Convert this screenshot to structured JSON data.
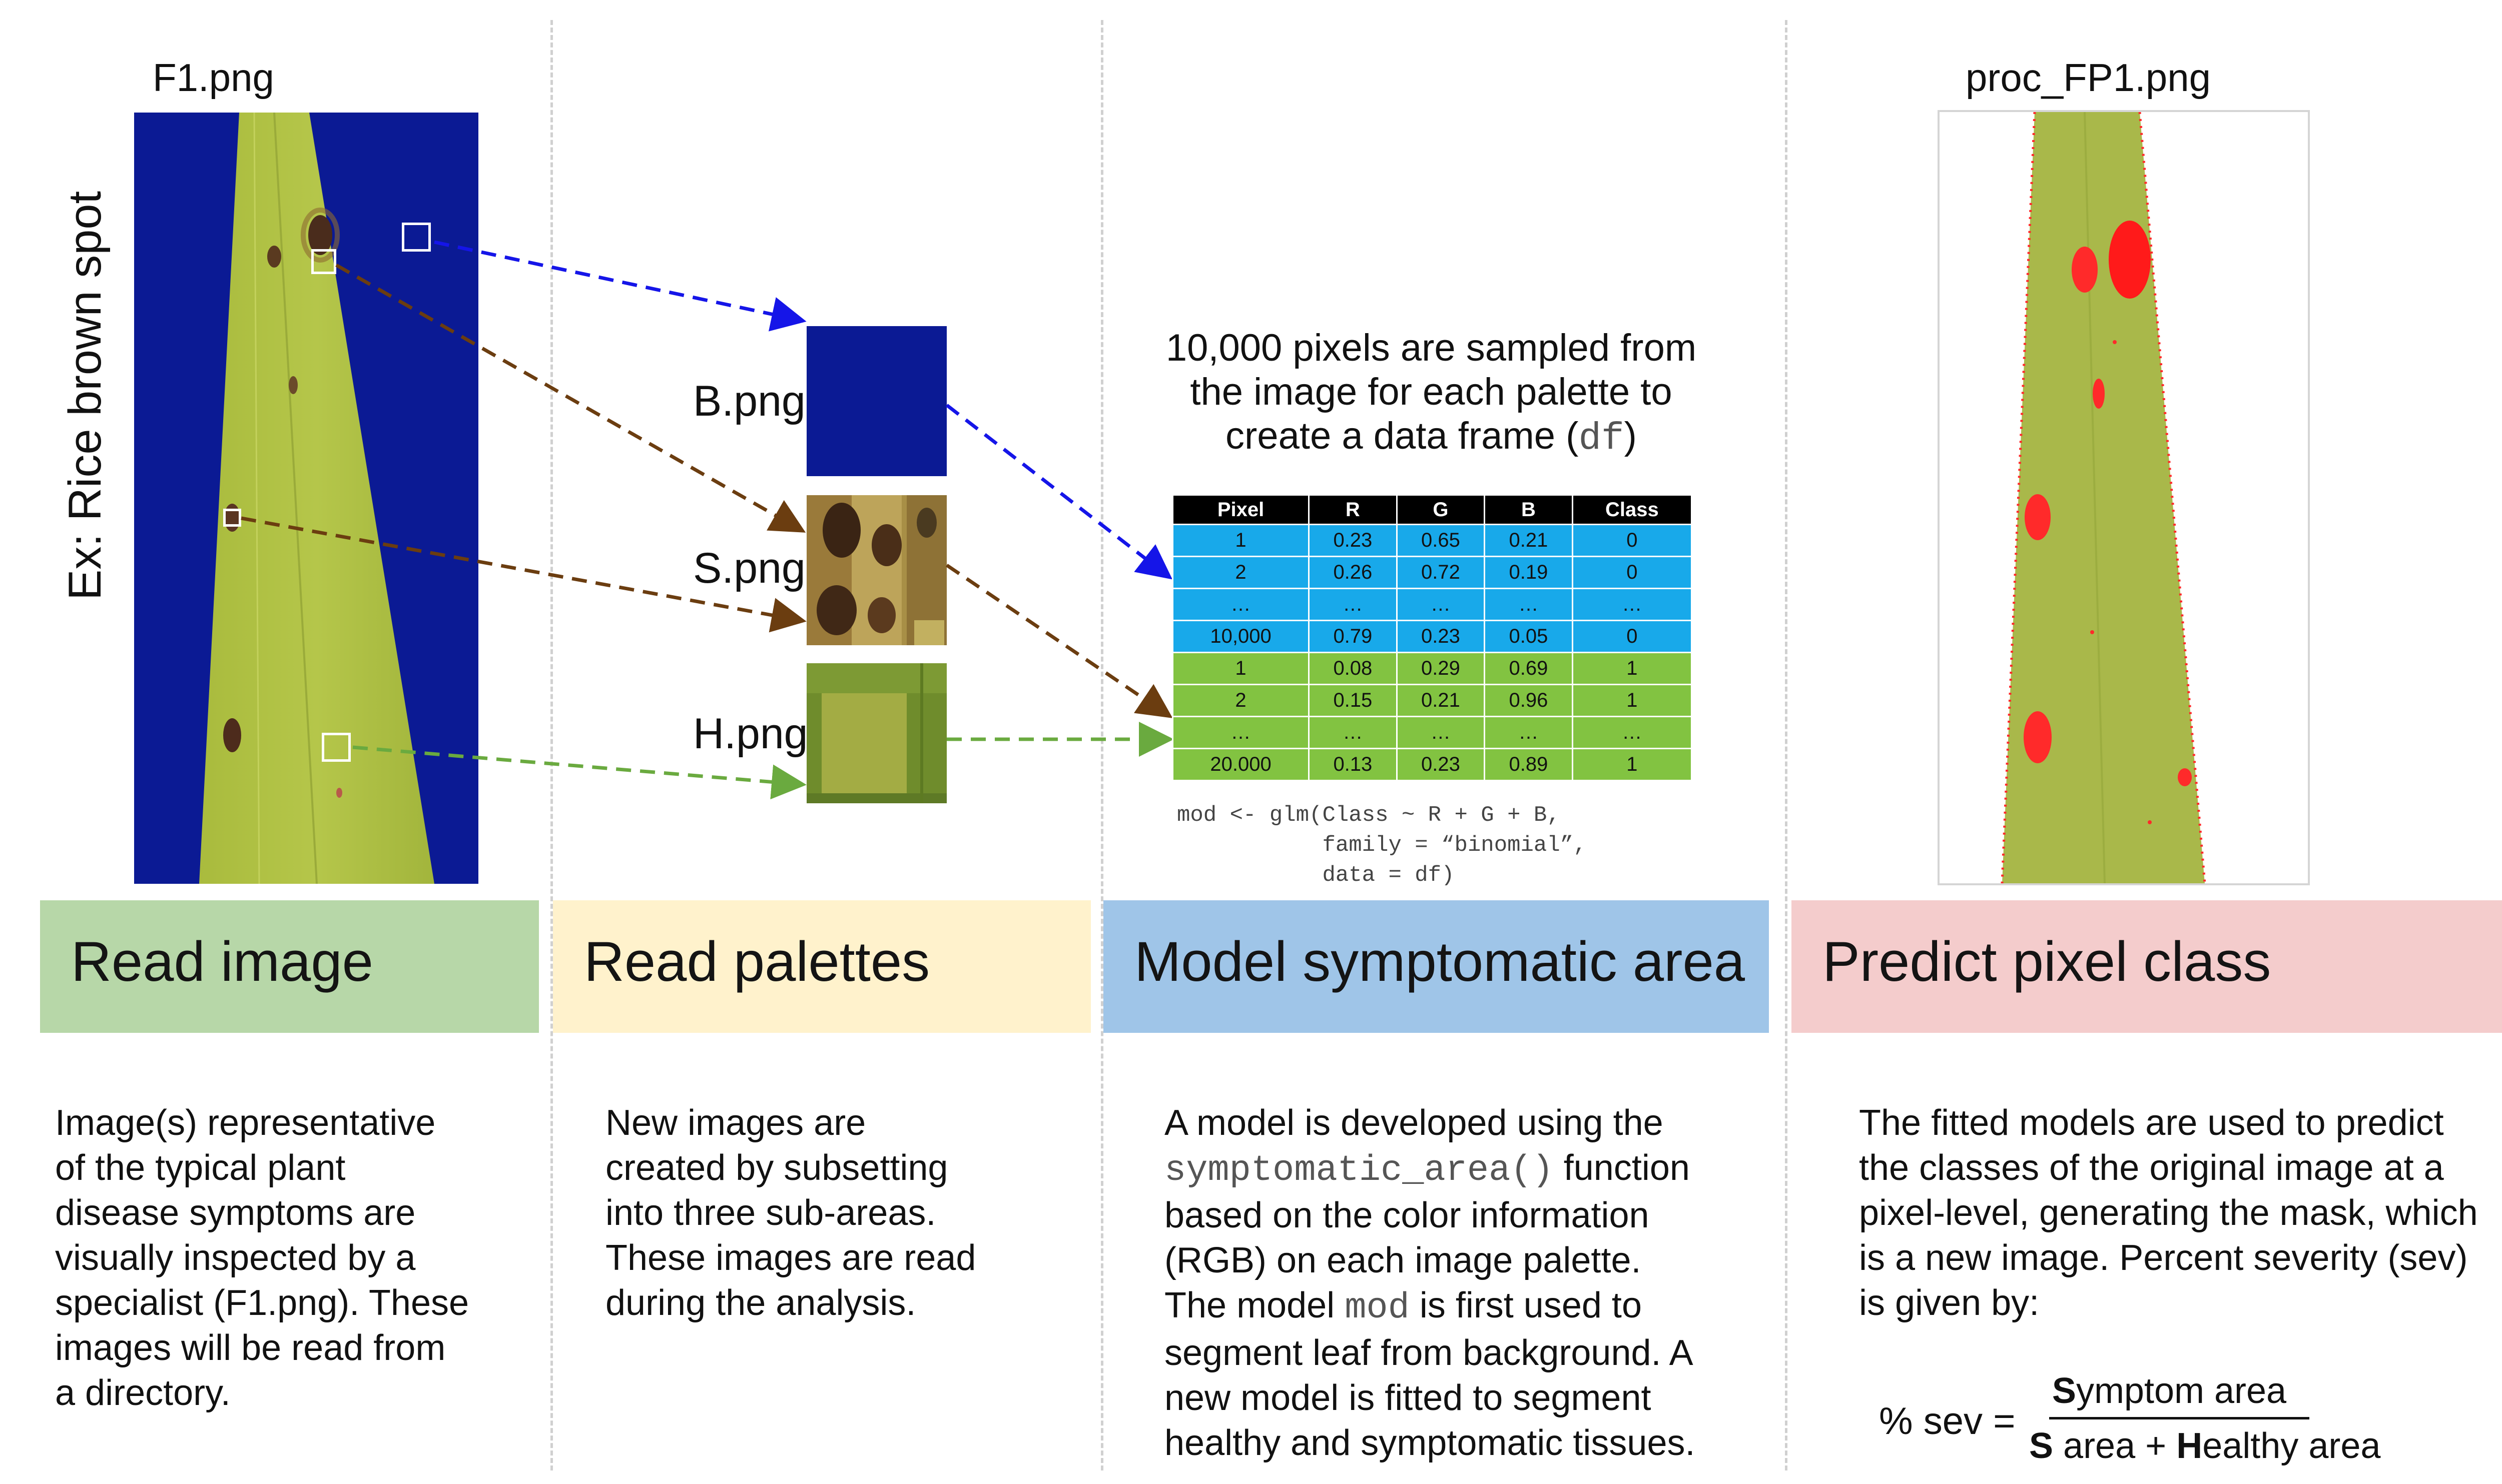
{
  "columns": [
    {
      "title": "Read image",
      "color": "#b7d7a8",
      "description": [
        "Image(s) representative",
        "of the typical plant",
        "disease symptoms are",
        "visually inspected by a",
        "specialist (F1.png). These",
        "images will be read from",
        "a directory."
      ]
    },
    {
      "title": "Read palettes",
      "color": "#fff2cc",
      "description": [
        "New images are",
        "created by subsetting",
        "into three sub-areas.",
        "These images are read",
        "during the analysis."
      ]
    },
    {
      "title": "Model symptomatic area",
      "color": "#9fc5e8",
      "description_parts": {
        "l1": "A model is developed using the",
        "l2_code": "symptomatic_area()",
        "l2_rest": " function",
        "l3": "based on the  color information",
        "l4": "(RGB) on each image palette.",
        "l5_pre": "The model ",
        "l5_code": "mod",
        "l5_post": " is first used to",
        "l6": "segment leaf from background. A",
        "l7": "new model is fitted to segment",
        "l8": "healthy and symptomatic tissues."
      }
    },
    {
      "title": "Predict pixel class",
      "color": "#f4cccc",
      "description": [
        "The fitted models are used to predict",
        "the classes of the original image at a",
        "pixel-level, generating the mask, which",
        "is a new image. Percent severity (sev)",
        "is given by:"
      ]
    }
  ],
  "source_image": {
    "filename": "F1.png",
    "caption": "Ex: Rice brown spot"
  },
  "palettes": [
    {
      "label": "B.png",
      "color": "#0b1a94"
    },
    {
      "label": "S.png"
    },
    {
      "label": "H.png"
    }
  ],
  "arrow_colors": {
    "background": "#1515e8",
    "symptom": "#6b3d10",
    "healthy": "#6aaa3f"
  },
  "sample_text": {
    "line1": "10,000 pixels are sampled from",
    "line2": "the image for each palette to",
    "line3_pre": "create a data frame (",
    "line3_code": "df",
    "line3_post": ")"
  },
  "table": {
    "headers": [
      "Pixel",
      "R",
      "G",
      "B",
      "Class"
    ],
    "rows": [
      [
        "1",
        "0.23",
        "0.65",
        "0.21",
        "0"
      ],
      [
        "2",
        "0.26",
        "0.72",
        "0.19",
        "0"
      ],
      [
        "…",
        "…",
        "…",
        "…",
        "…"
      ],
      [
        "10,000",
        "0.79",
        "0.23",
        "0.05",
        "0"
      ],
      [
        "1",
        "0.08",
        "0.29",
        "0.69",
        "1"
      ],
      [
        "2",
        "0.15",
        "0.21",
        "0.96",
        "1"
      ],
      [
        "…",
        "…",
        "…",
        "…",
        "…"
      ],
      [
        "20.000",
        "0.13",
        "0.23",
        "0.89",
        "1"
      ]
    ],
    "colors": {
      "background_rows": "#18a9ea",
      "leaf_rows": "#82c341"
    }
  },
  "code": [
    "mod <- glm(Class ~ R + G + B,",
    "           family = “binomial”,",
    "           data = df)"
  ],
  "processed_image": {
    "filename": "proc_FP1.png"
  },
  "formula": {
    "lhs": "% sev =",
    "num_bold": "S",
    "num_rest": "ymptom area",
    "den_bold1": "S",
    "den_mid": " area + ",
    "den_bold2": "H",
    "den_rest": "ealthy area"
  }
}
